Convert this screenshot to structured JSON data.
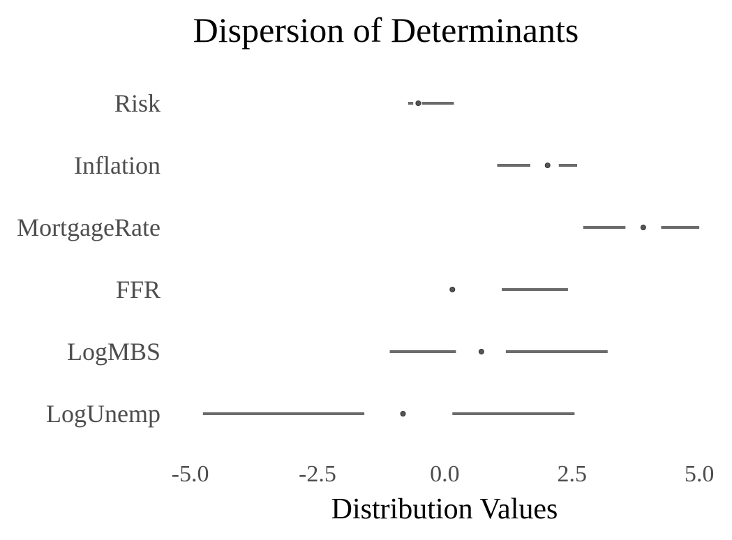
{
  "chart_data": {
    "type": "box",
    "title": "Dispersion of Determinants",
    "xlabel": "Distribution Values",
    "ylabel": "",
    "xlim": [
      -5.2,
      5.3
    ],
    "xticks": [
      -5.0,
      -2.5,
      0.0,
      2.5,
      5.0
    ],
    "xtick_labels": [
      "-5.0",
      "-2.5",
      "0.0",
      "2.5",
      "5.0"
    ],
    "grid": false,
    "color": "#6b6b6b",
    "categories": [
      "Risk",
      "Inflation",
      "MortgageRate",
      "FFR",
      "LogMBS",
      "LogUnemp"
    ],
    "series": [
      {
        "category": "Risk",
        "whisker_low": -0.72,
        "q1": -0.62,
        "median": -0.52,
        "q3": -0.45,
        "whisker_high": 0.18
      },
      {
        "category": "Inflation",
        "whisker_low": 1.03,
        "q1": 1.68,
        "median": 2.02,
        "q3": 2.24,
        "whisker_high": 2.6
      },
      {
        "category": "MortgageRate",
        "whisker_low": 2.72,
        "q1": 3.55,
        "median": 3.9,
        "q3": 4.25,
        "whisker_high": 5.0
      },
      {
        "category": "FFR",
        "whisker_low": 0.1,
        "q1": 0.12,
        "median": 0.15,
        "q3": 1.12,
        "whisker_high": 2.42
      },
      {
        "category": "LogMBS",
        "whisker_low": -1.08,
        "q1": 0.22,
        "median": 0.72,
        "q3": 1.2,
        "whisker_high": 3.2
      },
      {
        "category": "LogUnemp",
        "whisker_low": -4.75,
        "q1": -1.58,
        "median": -0.82,
        "q3": 0.15,
        "whisker_high": 2.55
      }
    ]
  }
}
